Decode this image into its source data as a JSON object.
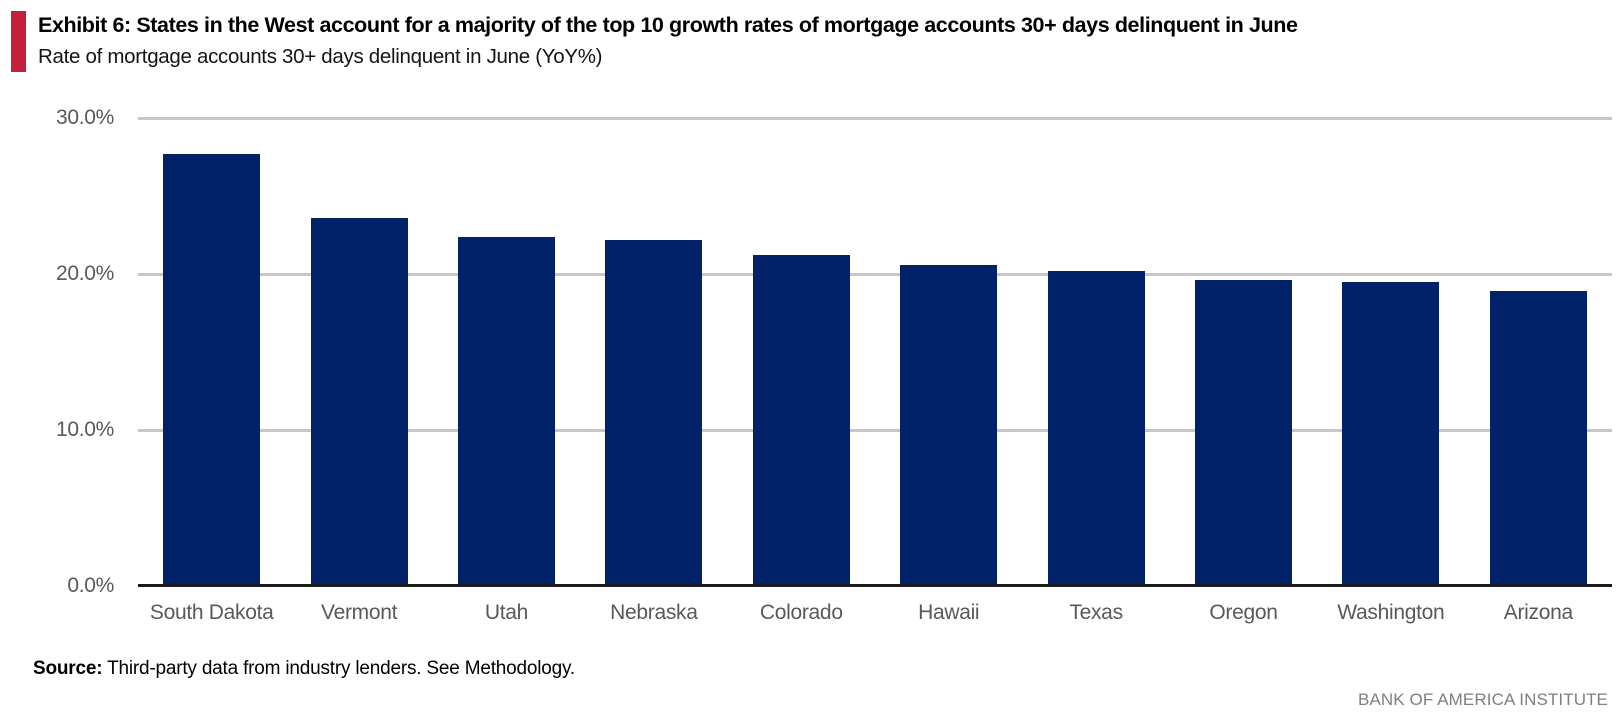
{
  "header": {
    "title": "Exhibit 6: States in the West account for a majority of the top 10 growth rates of mortgage accounts 30+ days delinquent in June",
    "subtitle": "Rate of mortgage accounts 30+ days delinquent in June (YoY%)"
  },
  "chart_data": {
    "type": "bar",
    "title": "Exhibit 6: States in the West account for a majority of the top 10 growth rates of mortgage accounts 30+ days delinquent in June",
    "subtitle": "Rate of mortgage accounts 30+ days delinquent in June (YoY%)",
    "categories": [
      "South Dakota",
      "Vermont",
      "Utah",
      "Nebraska",
      "Colorado",
      "Hawaii",
      "Texas",
      "Oregon",
      "Washington",
      "Arizona"
    ],
    "values": [
      27.7,
      23.6,
      22.4,
      22.2,
      21.2,
      20.6,
      20.2,
      19.6,
      19.5,
      18.9
    ],
    "xlabel": "",
    "ylabel": "",
    "ylim": [
      0,
      30
    ],
    "yticks": [
      0,
      10,
      20,
      30
    ],
    "ytick_labels": [
      "0.0%",
      "10.0%",
      "20.0%",
      "30.0%"
    ],
    "grid": true,
    "legend_position": "none",
    "bar_color": "#012169"
  },
  "footer": {
    "source_label": "Source:",
    "source_text": " Third-party data from industry lenders. See Methodology.",
    "branding": "BANK OF AMERICA INSTITUTE"
  },
  "colors": {
    "accent_red": "#C4203C",
    "bar_navy": "#012169",
    "gridline_gray": "#C7C7C7",
    "axis_black": "#1B1B1B",
    "tick_text_gray": "#595959",
    "branding_gray": "#7F7F7F"
  }
}
